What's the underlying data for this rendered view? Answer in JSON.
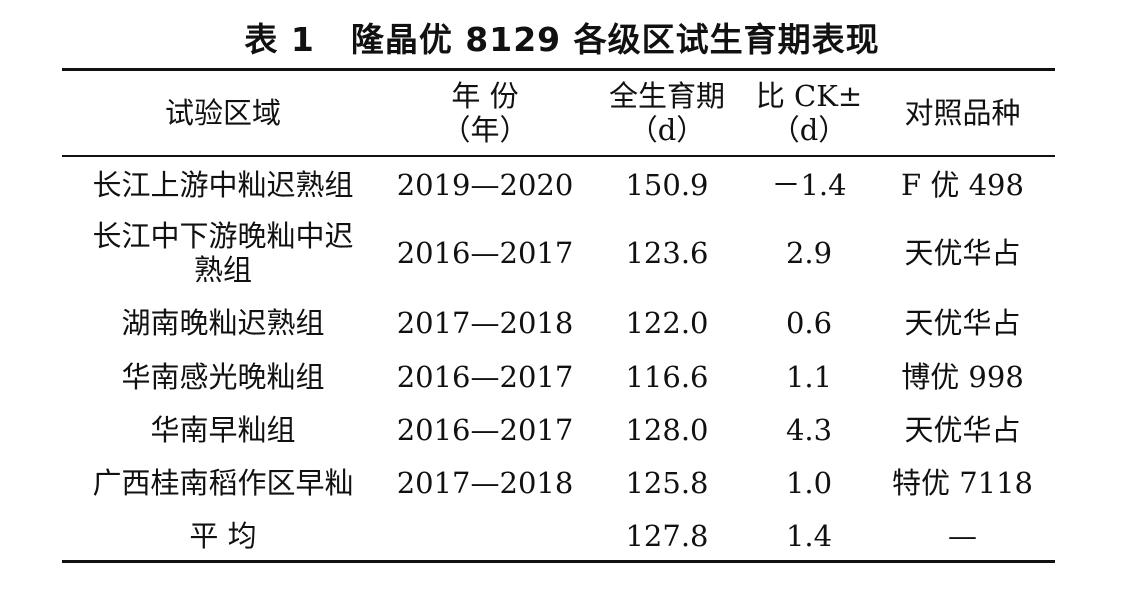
{
  "table": {
    "label": "表 1",
    "title": "隆晶优 8129 各级区试生育期表现",
    "headers": [
      {
        "line1": "试验区域",
        "line2": ""
      },
      {
        "line1": "年 份",
        "line2": "（年）"
      },
      {
        "line1": "全生育期",
        "line2": "（d）"
      },
      {
        "line1": "比 CK±",
        "line2": "（d）"
      },
      {
        "line1": "对照品种",
        "line2": ""
      }
    ],
    "rows": [
      {
        "region": "长江上游中籼迟熟组",
        "region2": "",
        "years": "2019—2020",
        "duration": "150.9",
        "diff": "－1.4",
        "control": "F 优 498"
      },
      {
        "region": "长江中下游晚籼中迟",
        "region2": "熟组",
        "years": "2016—2017",
        "duration": "123.6",
        "diff": "2.9",
        "control": "天优华占"
      },
      {
        "region": "湖南晚籼迟熟组",
        "region2": "",
        "years": "2017—2018",
        "duration": "122.0",
        "diff": "0.6",
        "control": "天优华占"
      },
      {
        "region": "华南感光晚籼组",
        "region2": "",
        "years": "2016—2017",
        "duration": "116.6",
        "diff": "1.1",
        "control": "博优 998"
      },
      {
        "region": "华南早籼组",
        "region2": "",
        "years": "2016—2017",
        "duration": "128.0",
        "diff": "4.3",
        "control": "天优华占"
      },
      {
        "region": "广西桂南稻作区早籼",
        "region2": "",
        "years": "2017—2018",
        "duration": "125.8",
        "diff": "1.0",
        "control": "特优 7118"
      },
      {
        "region": "平 均",
        "region2": "",
        "years": "",
        "duration": "127.8",
        "diff": "1.4",
        "control": "—"
      }
    ]
  }
}
